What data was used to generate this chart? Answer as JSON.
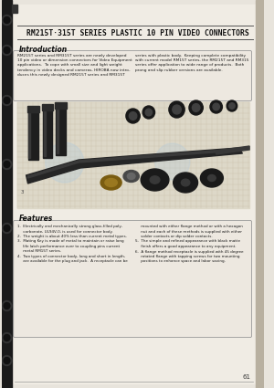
{
  "title": "RM215T·315T SERIES PLASTIC 10 PIN VIDEO CONNECTORS",
  "page_bg": "#e8e4dc",
  "white_area": "#f0ece4",
  "intro_heading": "Introduction",
  "intro_text_left": "RM215T series and RM315T series are newly developed\n10 pin video or dimension connectors for Video Equipment\napplications.  To cope with small size and light weight\ntendency in video decks and cameras, HIROBA now intro-\nduces this newly designed RM215T series and RM315T",
  "intro_text_right": "series with plastic body.  Keeping complete compatibility\nwith current model RM15T series, the RM215T and RM315\nseries offer application to wide range of products.  Both\nprong and slip rubber versions are available.",
  "features_heading": "Features",
  "features_text_col1": "1.  Electrically and mechanically strong glass-filled poly-\n     carbonate, UL94V-0, is used for connector body.\n2.  The weight is about 40% less than current metal types.\n3.  Mating Key is made of metal to maintain or raise long\n     life latch performance over to coupling pins current\n     metal RM15T series.\n4.  Two types of connector body, long and short in length,\n     are available for the plug and jack.  A receptacle can be",
  "features_text_col2": "     mounted with either flange method or with a hexagon\n     nut and each of these methods is supplied with either\n     solder contacts or dip solder contacts.\n5.  The simple and refined appearance with black matte\n     finish offers a good appearance to any equipment.\n6.  A flange method receptacle is supplied with 45 degree\n     rotated flange with tapping screws for two mounting\n     positions to enhance space and labor saving.",
  "page_number": "61",
  "left_strip_color": "#1a1a1a",
  "right_strip_color": "#b8b0a0",
  "hole_color": "#111111",
  "title_line_color": "#555555",
  "box_edge_color": "#999999",
  "box_fill": "#ede8e0",
  "grid_bg": "#ddd8c8",
  "grid_line": "#c8c0a8",
  "text_color": "#1a1a1a",
  "heading_color": "#111111"
}
